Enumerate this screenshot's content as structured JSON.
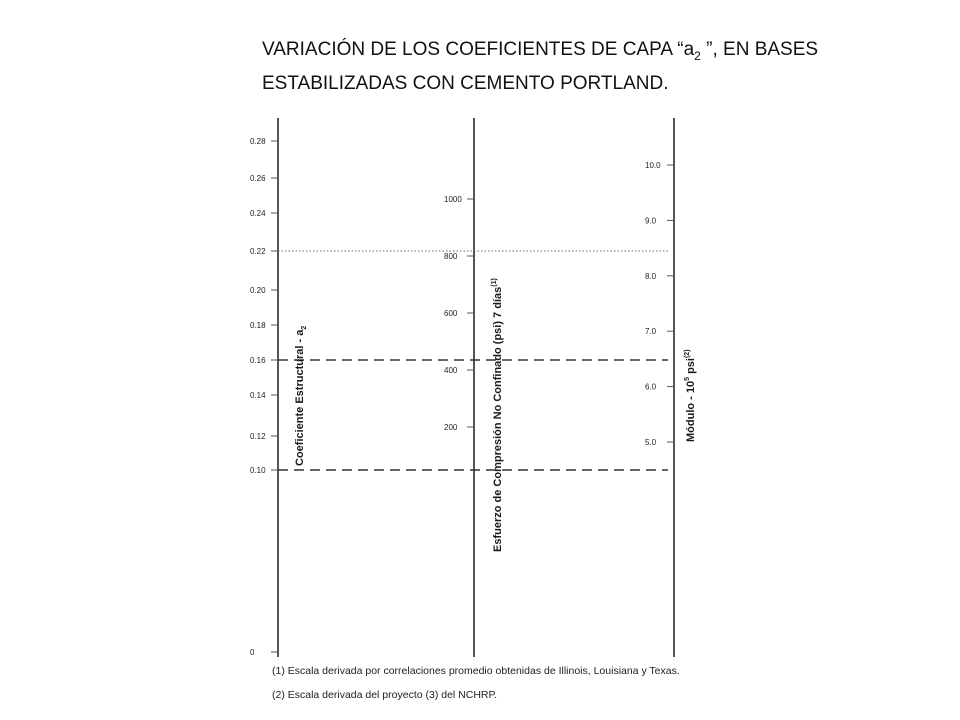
{
  "title": {
    "prefix": "VARIACIÓN DE LOS COEFICIENTES DE CAPA “a",
    "subscript": "2",
    "suffix": " ”, EN BASES ESTABILIZADAS CON CEMENTO PORTLAND."
  },
  "chart_data": {
    "type": "nomograph",
    "scales": [
      {
        "name": "Coeficiente Estructural - a",
        "label_subscript": "2",
        "ticks": [
          {
            "value": 0,
            "label": "0"
          },
          {
            "value": 0.1,
            "label": "0.10"
          },
          {
            "value": 0.12,
            "label": "0.12"
          },
          {
            "value": 0.14,
            "label": "0.14"
          },
          {
            "value": 0.16,
            "label": "0.16"
          },
          {
            "value": 0.18,
            "label": "0.18"
          },
          {
            "value": 0.2,
            "label": "0.20"
          },
          {
            "value": 0.22,
            "label": "0.22"
          },
          {
            "value": 0.24,
            "label": "0.24"
          },
          {
            "value": 0.26,
            "label": "0.26"
          },
          {
            "value": 0.28,
            "label": "0.28"
          }
        ]
      },
      {
        "name": "Esfuerzo de Compresión No Confinado (psi)  7 días",
        "label_sup": "(1)",
        "ticks": [
          {
            "value": 200,
            "label": "200"
          },
          {
            "value": 400,
            "label": "400"
          },
          {
            "value": 600,
            "label": "600"
          },
          {
            "value": 800,
            "label": "800"
          },
          {
            "value": 1000,
            "label": "1000"
          }
        ]
      },
      {
        "name": "Módulo - 10",
        "label_power": "5",
        "label_unit": " psi",
        "label_sup": "(2)",
        "ticks": [
          {
            "value": 5.0,
            "label": "5.0"
          },
          {
            "value": 6.0,
            "label": "6.0"
          },
          {
            "value": 7.0,
            "label": "7.0"
          },
          {
            "value": 8.0,
            "label": "8.0"
          },
          {
            "value": 9.0,
            "label": "9.0"
          },
          {
            "value": 10.0,
            "label": "10.0"
          }
        ]
      }
    ],
    "reference_lines": [
      {
        "a2": 0.22,
        "style": "dotted"
      },
      {
        "a2": 0.16,
        "style": "dashed"
      },
      {
        "a2": 0.1,
        "style": "dashed"
      }
    ]
  },
  "notes": [
    "(1)   Escala derivada por correlaciones promedio obtenidas de Illinois, Louisiana y Texas.",
    "(2)   Escala derivada del proyecto (3) del NCHRP."
  ]
}
